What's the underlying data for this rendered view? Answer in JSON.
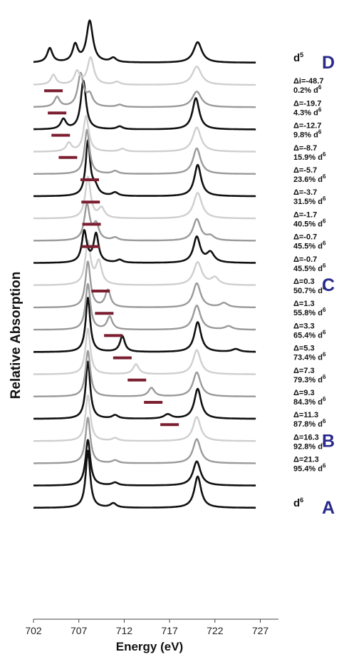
{
  "chart_data": {
    "type": "line",
    "title": "",
    "xlabel": "Energy (eV)",
    "ylabel": "Relative Absorption",
    "xlim": [
      702,
      729
    ],
    "x_ticks": [
      "702",
      "707",
      "712",
      "717",
      "722",
      "727"
    ],
    "grid": false,
    "legend": "none",
    "colors": {
      "black": "#111111",
      "gray": "#9a9a9a",
      "light": "#cfcfcf",
      "bar": "#7a1e30",
      "letters": "#2a2a8c"
    },
    "letters": [
      {
        "text": "D",
        "series": 0
      },
      {
        "text": "C",
        "series": 10
      },
      {
        "text": "B",
        "series": 17
      },
      {
        "text": "A",
        "series": 20
      }
    ],
    "series": [
      {
        "label1": "d",
        "label1_sup": "5",
        "label2": "",
        "label2_sup": "",
        "color": "black",
        "bar": null,
        "peaks": [
          [
            703.8,
            0.5,
            0.35
          ],
          [
            706.6,
            0.6,
            0.35
          ],
          [
            708.2,
            1.45,
            0.42
          ],
          [
            710.8,
            0.15,
            0.4
          ],
          [
            720.1,
            0.72,
            0.55
          ]
        ]
      },
      {
        "label1": "Δi=-48.7",
        "label1_sup": "",
        "label2": "0.2% d",
        "label2_sup": "6",
        "color": "light",
        "bar": 704.2,
        "peaks": [
          [
            704.2,
            0.35,
            0.35
          ],
          [
            706.8,
            0.45,
            0.35
          ],
          [
            708.3,
            0.95,
            0.42
          ],
          [
            711.2,
            0.1,
            0.4
          ],
          [
            720.0,
            0.65,
            0.6
          ]
        ]
      },
      {
        "label1": "Δ=-19.7",
        "label1_sup": "",
        "label2": "4.3% d",
        "label2_sup": "6",
        "color": "gray",
        "bar": 704.6,
        "peaks": [
          [
            704.6,
            0.35,
            0.35
          ],
          [
            707.2,
            1.15,
            0.38
          ],
          [
            708.2,
            0.4,
            0.4
          ],
          [
            711.5,
            0.08,
            0.4
          ],
          [
            720.0,
            0.55,
            0.6
          ]
        ]
      },
      {
        "label1": "Δ=-12.7",
        "label1_sup": "",
        "label2": "9.8% d",
        "label2_sup": "6",
        "color": "black",
        "bar": 705.0,
        "peaks": [
          [
            705.3,
            0.35,
            0.35
          ],
          [
            707.5,
            1.7,
            0.35
          ],
          [
            711.5,
            0.1,
            0.4
          ],
          [
            719.9,
            1.1,
            0.45
          ]
        ]
      },
      {
        "label1": "Δ=-8.7",
        "label1_sup": "",
        "label2": "15.9% d",
        "label2_sup": "6",
        "color": "light",
        "bar": 705.8,
        "peaks": [
          [
            705.9,
            0.3,
            0.35
          ],
          [
            707.8,
            1.25,
            0.35
          ],
          [
            711.8,
            0.1,
            0.4
          ],
          [
            720.0,
            0.85,
            0.55
          ]
        ]
      },
      {
        "label1": "Δ=-5.7",
        "label1_sup": "",
        "label2": "23.6% d",
        "label2_sup": "6",
        "color": "gray",
        "bar": 708.2,
        "peaks": [
          [
            707.9,
            1.55,
            0.33
          ],
          [
            711.0,
            0.1,
            0.4
          ],
          [
            720.0,
            0.9,
            0.5
          ]
        ]
      },
      {
        "label1": "Δ=-3.7",
        "label1_sup": "",
        "label2": "31.5% d",
        "label2_sup": "6",
        "color": "black",
        "bar": 708.3,
        "peaks": [
          [
            708.0,
            1.9,
            0.3
          ],
          [
            708.8,
            0.3,
            0.4
          ],
          [
            711.0,
            0.12,
            0.4
          ],
          [
            720.1,
            1.1,
            0.45
          ]
        ]
      },
      {
        "label1": "Δ=-1.7",
        "label1_sup": "",
        "label2": "40.5% d",
        "label2_sup": "6",
        "color": "light",
        "bar": 708.4,
        "peaks": [
          [
            708.0,
            1.45,
            0.35
          ],
          [
            709.5,
            0.35,
            0.4
          ],
          [
            720.1,
            0.9,
            0.55
          ]
        ]
      },
      {
        "label1": "Δ=-0.7",
        "label1_sup": "",
        "label2": "45.5% d",
        "label2_sup": "6",
        "color": "gray",
        "bar": 708.3,
        "peaks": [
          [
            707.9,
            1.25,
            0.35
          ],
          [
            708.9,
            0.55,
            0.38
          ],
          [
            711.0,
            0.1,
            0.4
          ],
          [
            720.0,
            0.75,
            0.5
          ],
          [
            721.5,
            0.15,
            0.5
          ]
        ]
      },
      {
        "label1": "Δ=-0.7",
        "label1_sup": "",
        "label2": "45.5% d",
        "label2_sup": "6",
        "color": "black",
        "bar": null,
        "peaks": [
          [
            707.6,
            1.1,
            0.33
          ],
          [
            708.9,
            1.0,
            0.33
          ],
          [
            711.5,
            0.1,
            0.4
          ],
          [
            720.0,
            0.9,
            0.45
          ],
          [
            721.5,
            0.35,
            0.5
          ]
        ]
      },
      {
        "label1": "Δ=0.3",
        "label1_sup": "",
        "label2": "50.7% d",
        "label2_sup": "6",
        "color": "light",
        "bar": 709.4,
        "peaks": [
          [
            708.0,
            1.5,
            0.35
          ],
          [
            709.2,
            0.8,
            0.38
          ],
          [
            720.1,
            0.8,
            0.55
          ],
          [
            722.0,
            0.25,
            0.5
          ]
        ]
      },
      {
        "label1": "Δ=1.3",
        "label1_sup": "",
        "label2": "55.8% d",
        "label2_sup": "6",
        "color": "gray",
        "bar": 709.8,
        "peaks": [
          [
            708.0,
            1.6,
            0.33
          ],
          [
            710.2,
            0.6,
            0.35
          ],
          [
            720.0,
            0.85,
            0.5
          ],
          [
            723.0,
            0.15,
            0.5
          ]
        ]
      },
      {
        "label1": "Δ=3.3",
        "label1_sup": "",
        "label2": "65.4% d",
        "label2_sup": "6",
        "color": "gray",
        "bar": 710.8,
        "peaks": [
          [
            708.0,
            1.6,
            0.32
          ],
          [
            710.4,
            0.45,
            0.35
          ],
          [
            720.0,
            0.85,
            0.5
          ],
          [
            723.5,
            0.12,
            0.5
          ]
        ]
      },
      {
        "label1": "Δ=5.3",
        "label1_sup": "",
        "label2": "73.4% d",
        "label2_sup": "6",
        "color": "black",
        "bar": 711.8,
        "peaks": [
          [
            708.0,
            1.9,
            0.3
          ],
          [
            711.8,
            0.55,
            0.33
          ],
          [
            720.1,
            1.05,
            0.45
          ],
          [
            724.3,
            0.1,
            0.5
          ]
        ]
      },
      {
        "label1": "Δ=7.3",
        "label1_sup": "",
        "label2": "79.3% d",
        "label2_sup": "6",
        "color": "light",
        "bar": 713.4,
        "peaks": [
          [
            708.0,
            1.6,
            0.32
          ],
          [
            713.3,
            0.35,
            0.38
          ],
          [
            720.0,
            0.85,
            0.5
          ]
        ]
      },
      {
        "label1": "Δ=9.3",
        "label1_sup": "",
        "label2": "84.3% d",
        "label2_sup": "6",
        "color": "gray",
        "bar": 715.2,
        "peaks": [
          [
            708.0,
            1.6,
            0.32
          ],
          [
            715.0,
            0.3,
            0.4
          ],
          [
            720.0,
            0.85,
            0.5
          ]
        ]
      },
      {
        "label1": "Δ=11.3",
        "label1_sup": "",
        "label2": "87.8% d",
        "label2_sup": "6",
        "color": "black",
        "bar": 717.0,
        "peaks": [
          [
            708.0,
            2.0,
            0.3
          ],
          [
            711.0,
            0.12,
            0.4
          ],
          [
            716.8,
            0.15,
            0.5
          ],
          [
            720.1,
            1.05,
            0.45
          ]
        ]
      },
      {
        "label1": "Δ=16.3",
        "label1_sup": "",
        "label2": "92.8% d",
        "label2_sup": "6",
        "color": "light",
        "bar": null,
        "peaks": [
          [
            708.0,
            1.6,
            0.32
          ],
          [
            711.0,
            0.1,
            0.4
          ],
          [
            720.0,
            0.85,
            0.5
          ]
        ]
      },
      {
        "label1": "Δ=21.3",
        "label1_sup": "",
        "label2": "95.4% d",
        "label2_sup": "6",
        "color": "gray",
        "bar": null,
        "peaks": [
          [
            708.0,
            1.6,
            0.32
          ],
          [
            711.0,
            0.1,
            0.4
          ],
          [
            720.0,
            0.85,
            0.5
          ]
        ]
      },
      {
        "label1": "",
        "label1_sup": "",
        "label2": "",
        "label2_sup": "",
        "color": "black",
        "bar": null,
        "peaks": [
          [
            708.0,
            1.6,
            0.32
          ],
          [
            711.0,
            0.1,
            0.4
          ],
          [
            720.0,
            0.85,
            0.5
          ]
        ]
      },
      {
        "label1": "d",
        "label1_sup": "6",
        "label2": "",
        "label2_sup": "",
        "color": "black",
        "bar": null,
        "peaks": [
          [
            708.0,
            2.0,
            0.3
          ],
          [
            710.8,
            0.15,
            0.4
          ],
          [
            720.1,
            1.1,
            0.45
          ]
        ]
      }
    ]
  }
}
